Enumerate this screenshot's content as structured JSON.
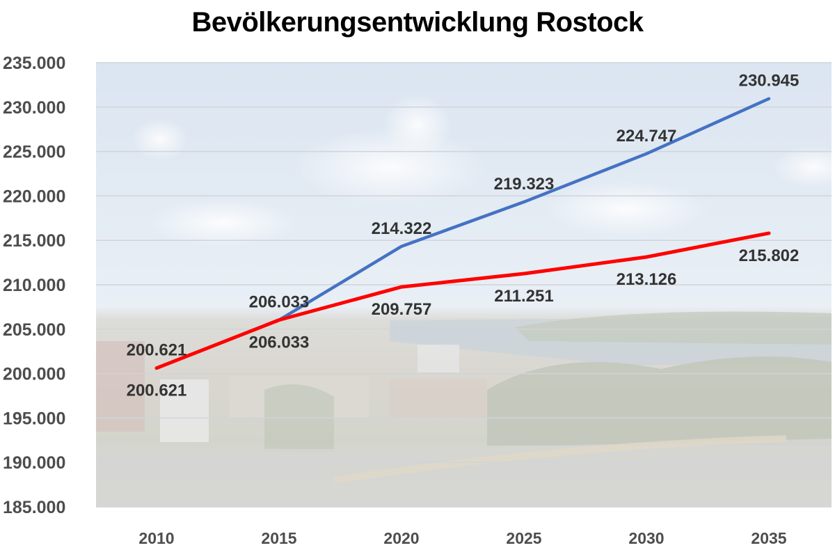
{
  "title": "Bevölkerungsentwicklung Rostock",
  "colors": {
    "series_blue": "#4472c4",
    "series_red": "#ff0000",
    "axis_text": "#4d4d4d",
    "label_text": "#333333",
    "gridline": "#d0d4da",
    "sky_top": "#dde6f1",
    "sky_bottom": "#eef2f6",
    "city_tone": "#d8d4cc"
  },
  "chart_data": {
    "type": "line",
    "title": "Bevölkerungsentwicklung Rostock",
    "xlabel": "",
    "ylabel": "",
    "x": [
      "2010",
      "2015",
      "2020",
      "2025",
      "2030",
      "2035"
    ],
    "ylim": [
      185000,
      235000
    ],
    "yticks": [
      185000,
      190000,
      195000,
      200000,
      205000,
      210000,
      215000,
      220000,
      225000,
      230000,
      235000
    ],
    "ytick_labels": [
      "185.000",
      "190.000",
      "195.000",
      "200.000",
      "205.000",
      "210.000",
      "215.000",
      "220.000",
      "225.000",
      "230.000",
      "235.000"
    ],
    "grid": true,
    "legend": "none",
    "background": "faded photograph of Rostock cityscape with sky",
    "series": [
      {
        "name": "blue",
        "color": "#4472c4",
        "values": [
          200621,
          206033,
          214322,
          219323,
          224747,
          230945
        ],
        "labels": [
          "200.621",
          "206.033",
          "214.322",
          "219.323",
          "224.747",
          "230.945"
        ],
        "label_position": "above"
      },
      {
        "name": "red",
        "color": "#ff0000",
        "values": [
          200621,
          206033,
          209757,
          211251,
          213126,
          215802
        ],
        "labels": [
          "200.621",
          "206.033",
          "209.757",
          "211.251",
          "213.126",
          "215.802"
        ],
        "label_position": "below"
      }
    ]
  }
}
